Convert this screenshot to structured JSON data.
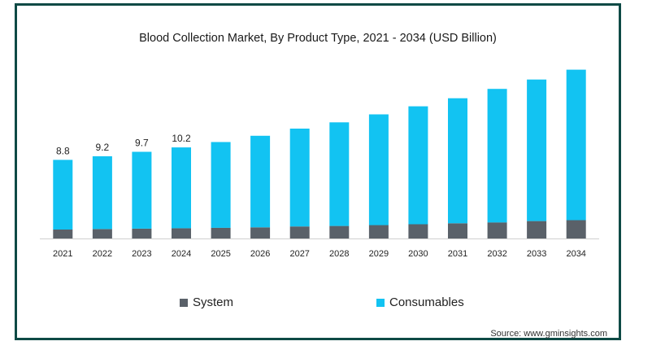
{
  "chart_data": {
    "type": "bar",
    "stacked": true,
    "title": "Blood Collection Market, By Product Type, 2021 - 2034 (USD Billion)",
    "categories": [
      "2021",
      "2022",
      "2023",
      "2024",
      "2025",
      "2026",
      "2027",
      "2028",
      "2029",
      "2030",
      "2031",
      "2032",
      "2033",
      "2034"
    ],
    "series": [
      {
        "name": "System",
        "color": "#5a6169",
        "values": [
          1.0,
          1.05,
          1.1,
          1.15,
          1.2,
          1.25,
          1.35,
          1.4,
          1.5,
          1.6,
          1.7,
          1.8,
          1.95,
          2.05
        ]
      },
      {
        "name": "Consumables",
        "color": "#12c3f2",
        "values": [
          7.8,
          8.15,
          8.6,
          9.05,
          9.6,
          10.25,
          10.95,
          11.6,
          12.4,
          13.2,
          14.0,
          14.95,
          15.85,
          16.85
        ]
      }
    ],
    "data_labels": [
      "8.8",
      "9.2",
      "9.7",
      "10.2"
    ],
    "ylim": [
      0,
      19.5
    ],
    "legend_position": "bottom",
    "grid": false,
    "source": "Source: www.gminsights.com"
  }
}
